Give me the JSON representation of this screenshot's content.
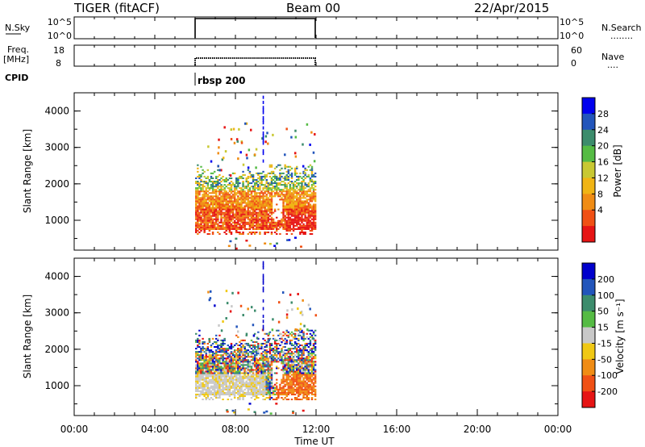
{
  "header": {
    "station": "TIGER (fitACF)",
    "beam": "Beam 00",
    "date": "22/Apr/2015"
  },
  "status_panels": {
    "nsky": {
      "label": "N.Sky",
      "ticks": [
        "10^5",
        "10^0"
      ],
      "right_ticks": [
        "10^5",
        "10^0"
      ],
      "right_label": "N.Search",
      "right_legend": "........"
    },
    "freq": {
      "label_line1": "Freq.",
      "label_line2": "[MHz]",
      "ticks": [
        "18",
        "8"
      ],
      "right_ticks": [
        "60",
        "0"
      ],
      "right_label": "Nave",
      "right_legend": "...."
    },
    "cpid": {
      "label": "CPID",
      "value": "rbsp 200"
    }
  },
  "x_axis": {
    "label": "Time UT",
    "ticks": [
      "00:00",
      "04:00",
      "08:00",
      "12:00",
      "16:00",
      "20:00",
      "00:00"
    ]
  },
  "power_panel": {
    "ylabel": "Slant Range [km]",
    "yticks": [
      "4000",
      "3000",
      "2000",
      "1000"
    ],
    "colorbar_label": "Power [dB]",
    "colorbar_ticks": [
      "28",
      "24",
      "20",
      "16",
      "12",
      "8",
      "4"
    ],
    "colors": [
      "#0000ee",
      "#2255bb",
      "#3c8c6c",
      "#55bb44",
      "#c8c832",
      "#f0b414",
      "#f08c14",
      "#f05014",
      "#e61414"
    ]
  },
  "velocity_panel": {
    "ylabel": "Slant Range [km]",
    "yticks": [
      "4000",
      "3000",
      "2000",
      "1000"
    ],
    "colorbar_label": "Velocity [m s⁻¹]",
    "colorbar_ticks": [
      "200",
      "100",
      "50",
      "15",
      "-15",
      "-50",
      "-100",
      "-200"
    ],
    "colors": [
      "#0000cc",
      "#2255bb",
      "#3c8c6c",
      "#55bb44",
      "#c8c8c8",
      "#f0c814",
      "#f08c14",
      "#f05014",
      "#e61414"
    ]
  },
  "chart_data": [
    {
      "type": "heatmap",
      "title": "Power",
      "ylabel": "Slant Range [km]",
      "xlabel": "Time UT",
      "xlim": [
        "00:00",
        "24:00"
      ],
      "ylim": [
        180,
        4500
      ],
      "data_time_range": [
        "06:00",
        "12:00"
      ],
      "colorbar_label": "Power [dB]",
      "colorbar_ticks": [
        28,
        24,
        20,
        16,
        12,
        8,
        4
      ]
    },
    {
      "type": "heatmap",
      "title": "Velocity",
      "ylabel": "Slant Range [km]",
      "xlabel": "Time UT",
      "xlim": [
        "00:00",
        "24:00"
      ],
      "ylim": [
        180,
        4500
      ],
      "data_time_range": [
        "06:00",
        "12:00"
      ],
      "colorbar_label": "Velocity [m s⁻¹]",
      "colorbar_ticks": [
        200,
        100,
        50,
        15,
        -15,
        -50,
        -100,
        -200
      ]
    }
  ]
}
